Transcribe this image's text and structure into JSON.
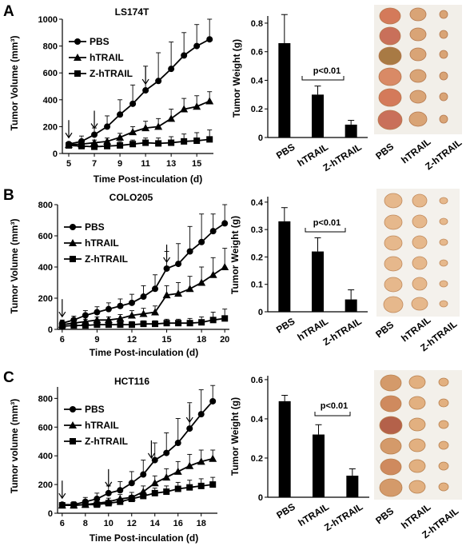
{
  "panels": [
    {
      "label": "A",
      "line_chart": {
        "title": "LS174T",
        "xlabel": "Time Post-inculation  (d)",
        "ylabel": "Tumor Volume (mm³)",
        "y_ticks": [
          0,
          200,
          400,
          600,
          800,
          1000
        ],
        "x_ticks": [
          5,
          7,
          9,
          11,
          13,
          15
        ],
        "arrows_at": [
          5,
          7,
          11
        ]
      },
      "bar_chart": {
        "ylabel": "Tumor Weight (g)",
        "y_ticks": [
          "0",
          "0.2",
          "0.4",
          "0.6",
          "0.8"
        ],
        "pvalue": "p<0.01"
      },
      "photo_labels": [
        "PBS",
        "hTRAIL",
        "Z-hTRAIL"
      ]
    },
    {
      "label": "B",
      "line_chart": {
        "title": "COLO205",
        "xlabel": "Time Post-inculation  (d)",
        "ylabel": "Tumor Volume (mm³)",
        "y_ticks": [
          0,
          200,
          400,
          600,
          800
        ],
        "x_ticks": [
          6,
          9,
          12,
          15,
          18,
          20
        ],
        "arrows_at": [
          6,
          15
        ]
      },
      "bar_chart": {
        "ylabel": "Tumor Weight (g)",
        "y_ticks": [
          "0",
          "0.1",
          "0.2",
          "0.3",
          "0.4"
        ],
        "pvalue": "p<0.01"
      },
      "photo_labels": [
        "PBS",
        "hTRAIL",
        "Z-hTRAIL"
      ]
    },
    {
      "label": "C",
      "line_chart": {
        "title": "HCT116",
        "xlabel": "Time Post-inculation  (d)",
        "ylabel": "Tumor volume (mm³)",
        "y_ticks": [
          0,
          200,
          400,
          600,
          800
        ],
        "x_ticks": [
          6,
          8,
          10,
          12,
          14,
          16,
          18
        ],
        "arrows_at": [
          6,
          10,
          13.7,
          17
        ]
      },
      "bar_chart": {
        "ylabel": "Tumor Weight (g)",
        "y_ticks": [
          "0",
          "0.2",
          "0.4",
          "0.6"
        ],
        "pvalue": "p<0.01"
      },
      "photo_labels": [
        "PBS",
        "hTRAIL",
        "Z-hTRAIL"
      ]
    }
  ],
  "colors": {
    "ink": "#000000",
    "photo_bg": "#f2efe9",
    "tumor": "#d9a476"
  },
  "chart_data": [
    {
      "type": "line",
      "title": "LS174T",
      "xlabel": "Time Post-inculation  (d)",
      "ylabel": "Tumor Volume (mm³)",
      "xlim": [
        4.5,
        16.3
      ],
      "ylim": [
        0,
        1000
      ],
      "x": [
        5,
        6,
        7,
        8,
        9,
        10,
        11,
        12,
        13,
        14,
        15,
        16
      ],
      "legend": "top-left",
      "series": [
        {
          "name": "PBS",
          "marker": "circle",
          "values": [
            70,
            90,
            140,
            200,
            290,
            370,
            470,
            540,
            630,
            730,
            800,
            850
          ],
          "errors": [
            15,
            40,
            50,
            80,
            110,
            140,
            180,
            210,
            200,
            170,
            160,
            150
          ]
        },
        {
          "name": "hTRAIL",
          "marker": "triangle",
          "values": [
            65,
            70,
            80,
            90,
            120,
            160,
            190,
            200,
            260,
            330,
            350,
            390
          ],
          "errors": [
            10,
            15,
            20,
            25,
            30,
            40,
            50,
            60,
            70,
            80,
            80,
            70
          ]
        },
        {
          "name": "Z-hTRAIL",
          "marker": "square",
          "values": [
            60,
            55,
            50,
            55,
            60,
            70,
            80,
            75,
            80,
            90,
            95,
            105
          ],
          "errors": [
            15,
            20,
            25,
            25,
            30,
            30,
            35,
            40,
            45,
            55,
            60,
            70
          ]
        }
      ]
    },
    {
      "type": "bar",
      "ylabel": "Tumor Weight (g)",
      "categories": [
        "PBS",
        "hTRAIL",
        "Z-hTRAIL"
      ],
      "values": [
        0.66,
        0.3,
        0.09
      ],
      "errors": [
        0.2,
        0.06,
        0.03
      ],
      "ylim": [
        0,
        0.85
      ],
      "annotation": "p<0.01"
    },
    {
      "type": "line",
      "title": "COLO205",
      "xlabel": "Time Post-inculation  (d)",
      "ylabel": "Tumor Volume (mm³)",
      "xlim": [
        5.6,
        20.4
      ],
      "ylim": [
        0,
        800
      ],
      "x": [
        6,
        7,
        8,
        9,
        10,
        11,
        12,
        13,
        14,
        15,
        16,
        17,
        18,
        19,
        20
      ],
      "legend": "top-left",
      "series": [
        {
          "name": "PBS",
          "marker": "circle",
          "values": [
            40,
            60,
            90,
            110,
            130,
            150,
            170,
            210,
            260,
            390,
            420,
            500,
            560,
            630,
            680
          ],
          "errors": [
            20,
            25,
            30,
            35,
            40,
            45,
            55,
            70,
            90,
            110,
            130,
            160,
            180,
            110,
            120
          ]
        },
        {
          "name": "hTRAIL",
          "marker": "triangle",
          "values": [
            30,
            40,
            50,
            60,
            60,
            70,
            90,
            100,
            110,
            220,
            230,
            260,
            300,
            350,
            400
          ],
          "errors": [
            10,
            15,
            15,
            20,
            20,
            25,
            30,
            35,
            40,
            60,
            70,
            80,
            100,
            110,
            120
          ]
        },
        {
          "name": "Z-hTRAIL",
          "marker": "square",
          "values": [
            20,
            25,
            25,
            30,
            30,
            30,
            30,
            35,
            35,
            40,
            40,
            40,
            45,
            60,
            70
          ],
          "errors": [
            10,
            10,
            12,
            15,
            15,
            15,
            20,
            20,
            20,
            25,
            25,
            30,
            35,
            50,
            60
          ]
        }
      ]
    },
    {
      "type": "bar",
      "ylabel": "Tumor Weight (g)",
      "categories": [
        "PBS",
        "hTRAIL",
        "Z-hTRAIL"
      ],
      "values": [
        0.33,
        0.22,
        0.045
      ],
      "errors": [
        0.05,
        0.05,
        0.035
      ],
      "ylim": [
        0,
        0.42
      ],
      "annotation": "p<0.01"
    },
    {
      "type": "line",
      "title": "HCT116",
      "xlabel": "Time Post-inculation  (d)",
      "ylabel": "Tumor volume (mm³)",
      "xlim": [
        5.6,
        19.4
      ],
      "ylim": [
        0,
        880
      ],
      "x": [
        6,
        7,
        8,
        9,
        10,
        11,
        12,
        13,
        14,
        15,
        16,
        17,
        18,
        19
      ],
      "legend": "top-left",
      "series": [
        {
          "name": "PBS",
          "marker": "circle",
          "values": [
            60,
            60,
            80,
            100,
            140,
            160,
            210,
            270,
            370,
            420,
            490,
            590,
            690,
            780
          ],
          "errors": [
            15,
            20,
            30,
            40,
            50,
            60,
            80,
            100,
            120,
            140,
            170,
            180,
            170,
            110
          ]
        },
        {
          "name": "hTRAIL",
          "marker": "triangle",
          "values": [
            55,
            55,
            60,
            70,
            80,
            100,
            110,
            150,
            210,
            250,
            290,
            330,
            360,
            380
          ],
          "errors": [
            10,
            10,
            15,
            20,
            25,
            30,
            35,
            40,
            50,
            60,
            70,
            80,
            80,
            60
          ]
        },
        {
          "name": "Z-hTRAIL",
          "marker": "square",
          "values": [
            55,
            55,
            60,
            60,
            70,
            80,
            100,
            120,
            140,
            150,
            170,
            180,
            190,
            200
          ],
          "errors": [
            10,
            10,
            15,
            15,
            20,
            20,
            25,
            30,
            35,
            40,
            45,
            50,
            50,
            50
          ]
        }
      ]
    },
    {
      "type": "bar",
      "ylabel": "Tumor Weight (g)",
      "categories": [
        "PBS",
        "hTRAIL",
        "Z-hTRAIL"
      ],
      "values": [
        0.49,
        0.32,
        0.11
      ],
      "errors": [
        0.03,
        0.05,
        0.035
      ],
      "ylim": [
        0,
        0.62
      ],
      "annotation": "p<0.01"
    }
  ]
}
